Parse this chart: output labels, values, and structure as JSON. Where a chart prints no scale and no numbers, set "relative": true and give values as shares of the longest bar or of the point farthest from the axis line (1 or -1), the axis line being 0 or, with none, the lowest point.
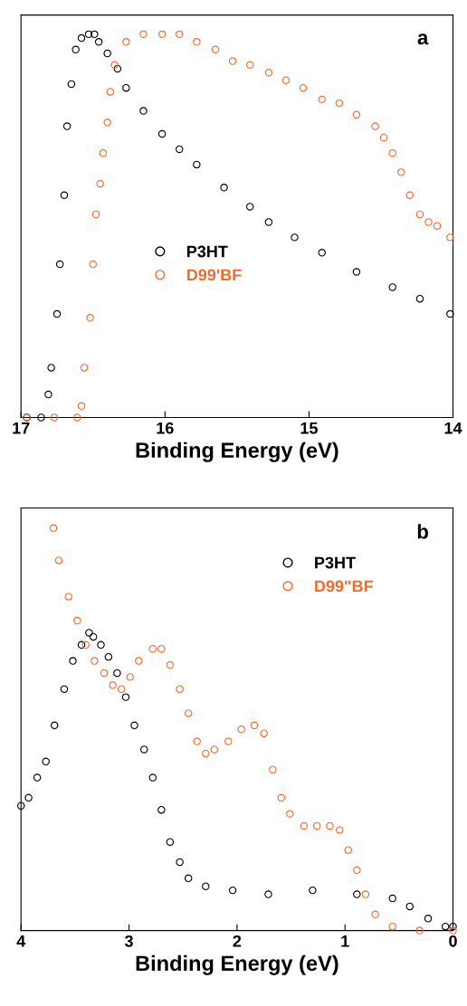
{
  "chart_data": [
    {
      "type": "scatter",
      "relative": true,
      "xlabel": "Binding Energy (eV)",
      "xlim": [
        17,
        14
      ],
      "xticks": [
        17,
        16,
        15,
        14
      ],
      "legend": "center left",
      "marker": "circle",
      "grid": false,
      "annotations": [
        "a"
      ],
      "series": [
        {
          "name": "P3HT",
          "color": "#000000",
          "x": [
            16.96,
            16.86,
            16.81,
            16.79,
            16.75,
            16.73,
            16.7,
            16.68,
            16.65,
            16.62,
            16.58,
            16.53,
            16.49,
            16.46,
            16.4,
            16.33,
            16.27,
            16.15,
            16.02,
            15.9,
            15.78,
            15.59,
            15.41,
            15.28,
            15.1,
            14.91,
            14.67,
            14.42,
            14.23,
            14.02
          ],
          "values": [
            0,
            0,
            0.06,
            0.13,
            0.27,
            0.4,
            0.58,
            0.76,
            0.87,
            0.96,
            0.99,
            1.0,
            1.0,
            0.98,
            0.95,
            0.91,
            0.86,
            0.8,
            0.74,
            0.7,
            0.66,
            0.6,
            0.55,
            0.51,
            0.47,
            0.43,
            0.38,
            0.34,
            0.31,
            0.27
          ]
        },
        {
          "name": "D99'BF",
          "color": "#f26b2a",
          "x": [
            16.96,
            16.77,
            16.61,
            16.58,
            16.56,
            16.52,
            16.5,
            16.48,
            16.45,
            16.43,
            16.4,
            16.38,
            16.35,
            16.27,
            16.15,
            16.02,
            15.9,
            15.78,
            15.65,
            15.53,
            15.41,
            15.28,
            15.16,
            15.04,
            14.91,
            14.79,
            14.67,
            14.54,
            14.48,
            14.42,
            14.36,
            14.3,
            14.23,
            14.17,
            14.11,
            14.02
          ],
          "values": [
            0,
            0,
            0,
            0.03,
            0.13,
            0.26,
            0.4,
            0.53,
            0.61,
            0.69,
            0.77,
            0.85,
            0.92,
            0.98,
            1.0,
            1.0,
            1.0,
            0.98,
            0.96,
            0.93,
            0.92,
            0.9,
            0.88,
            0.86,
            0.83,
            0.82,
            0.79,
            0.76,
            0.73,
            0.69,
            0.64,
            0.58,
            0.53,
            0.51,
            0.5,
            0.47
          ]
        }
      ]
    },
    {
      "type": "scatter",
      "relative": true,
      "xlabel": "Binding Energy (eV)",
      "xlim": [
        4,
        0
      ],
      "xticks": [
        4,
        3,
        2,
        1,
        0
      ],
      "legend": "top right",
      "marker": "circle",
      "grid": false,
      "annotations": [
        "b"
      ],
      "series": [
        {
          "name": "P3HT",
          "color": "#000000",
          "x": [
            4.0,
            3.93,
            3.85,
            3.77,
            3.69,
            3.6,
            3.52,
            3.44,
            3.37,
            3.33,
            3.26,
            3.19,
            3.11,
            3.03,
            2.95,
            2.86,
            2.78,
            2.7,
            2.62,
            2.53,
            2.45,
            2.29,
            2.04,
            1.71,
            1.3,
            0.89,
            0.56,
            0.4,
            0.23,
            0.07,
            0.0
          ],
          "values": [
            0.31,
            0.33,
            0.38,
            0.42,
            0.51,
            0.6,
            0.67,
            0.71,
            0.74,
            0.73,
            0.71,
            0.68,
            0.64,
            0.58,
            0.51,
            0.45,
            0.38,
            0.3,
            0.22,
            0.17,
            0.13,
            0.11,
            0.1,
            0.09,
            0.1,
            0.09,
            0.08,
            0.06,
            0.03,
            0.01,
            0.01
          ]
        },
        {
          "name": "D99\"BF",
          "color": "#f26b2a",
          "x": [
            3.7,
            3.65,
            3.56,
            3.48,
            3.4,
            3.32,
            3.23,
            3.15,
            3.07,
            2.99,
            2.91,
            2.78,
            2.7,
            2.62,
            2.53,
            2.45,
            2.37,
            2.29,
            2.21,
            2.08,
            1.96,
            1.84,
            1.75,
            1.67,
            1.59,
            1.51,
            1.38,
            1.26,
            1.14,
            1.05,
            0.97,
            0.89,
            0.81,
            0.72,
            0.56,
            0.31,
            0.0
          ],
          "values": [
            1.0,
            0.92,
            0.83,
            0.77,
            0.71,
            0.67,
            0.64,
            0.61,
            0.6,
            0.63,
            0.67,
            0.7,
            0.7,
            0.66,
            0.6,
            0.54,
            0.47,
            0.44,
            0.45,
            0.47,
            0.5,
            0.51,
            0.49,
            0.4,
            0.33,
            0.29,
            0.26,
            0.26,
            0.26,
            0.25,
            0.2,
            0.15,
            0.09,
            0.04,
            0.01,
            0,
            0
          ]
        }
      ]
    }
  ]
}
